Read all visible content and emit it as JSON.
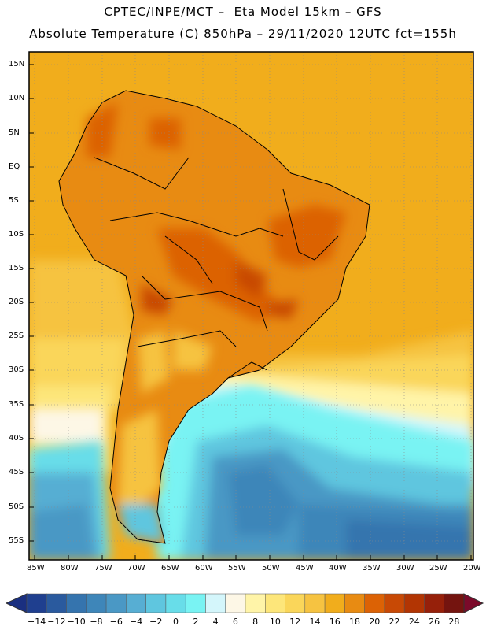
{
  "header": {
    "line1": "CPTEC/INPE/MCT –  Eta Model 15km – GFS",
    "line2": "Absolute Temperature (C) 850hPa – 29/11/2020 12UTC fct=155h"
  },
  "map": {
    "region": "South America",
    "lat_labels": [
      "15N",
      "10N",
      "5N",
      "EQ",
      "5S",
      "10S",
      "15S",
      "20S",
      "25S",
      "30S",
      "35S",
      "40S",
      "45S",
      "50S",
      "55S"
    ],
    "lon_labels": [
      "85W",
      "80W",
      "75W",
      "70W",
      "65W",
      "60W",
      "55W",
      "50W",
      "45W",
      "40W",
      "35W",
      "30W",
      "25W",
      "20W"
    ],
    "grid": true
  },
  "colorbar": {
    "labels": [
      "-14",
      "-12",
      "-10",
      "-8",
      "-6",
      "-4",
      "-2",
      "0",
      "2",
      "4",
      "6",
      "8",
      "10",
      "12",
      "14",
      "16",
      "18",
      "20",
      "22",
      "24",
      "26",
      "28"
    ],
    "colors": [
      "#1f3f8f",
      "#2a5a9e",
      "#3574ae",
      "#3e86b9",
      "#4a98c5",
      "#57aed3",
      "#5fc6df",
      "#68dde9",
      "#79f3f3",
      "#d4f6fb",
      "#fdf7e6",
      "#fff4a8",
      "#fde67a",
      "#fad65a",
      "#f6c341",
      "#f1ad1c",
      "#e88b12",
      "#dc6205",
      "#c84905",
      "#b23503",
      "#96200a",
      "#74140f"
    ],
    "under_color": "#1a2f80",
    "over_color": "#7b0a2a"
  }
}
